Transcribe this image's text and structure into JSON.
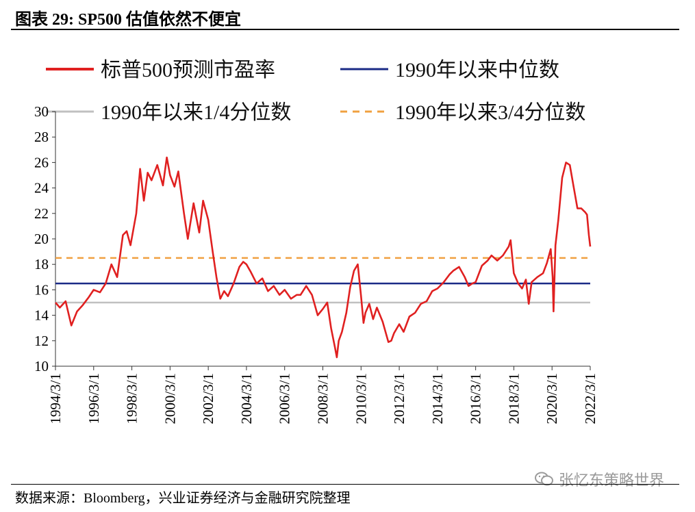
{
  "title": "图表 29:  SP500 估值依然不便宜",
  "source": "数据来源：Bloomberg，兴业证券经济与金融研究院整理",
  "watermark": "张忆东策略世界",
  "chart_data": {
    "type": "line",
    "title": "SP500 估值依然不便宜",
    "xlabel": "",
    "ylabel": "",
    "ylim": [
      10,
      30
    ],
    "yticks": [
      10,
      12,
      14,
      16,
      18,
      20,
      22,
      24,
      26,
      28,
      30
    ],
    "xticks": [
      "1994/3/1",
      "1996/3/1",
      "1998/3/1",
      "2000/3/1",
      "2002/3/1",
      "2004/3/1",
      "2006/3/1",
      "2008/3/1",
      "2010/3/1",
      "2012/3/1",
      "2014/3/1",
      "2016/3/1",
      "2018/3/1",
      "2020/3/1",
      "2022/3/1"
    ],
    "xrange": [
      1994.17,
      2022.17
    ],
    "legend_position": "top",
    "series": [
      {
        "name": "标普500预测市盈率",
        "color": "#e02020",
        "style": "solid",
        "x": [
          1994.17,
          1994.4,
          1994.7,
          1995.0,
          1995.3,
          1995.6,
          1995.9,
          1996.17,
          1996.5,
          1996.8,
          1997.1,
          1997.4,
          1997.7,
          1997.9,
          1998.1,
          1998.4,
          1998.6,
          1998.8,
          1999.0,
          1999.2,
          1999.5,
          1999.8,
          2000.0,
          2000.17,
          2000.4,
          2000.6,
          2000.9,
          2001.1,
          2001.4,
          2001.7,
          2001.9,
          2002.17,
          2002.4,
          2002.6,
          2002.8,
          2003.0,
          2003.2,
          2003.5,
          2003.8,
          2004.0,
          2004.17,
          2004.4,
          2004.7,
          2005.0,
          2005.3,
          2005.6,
          2005.9,
          2006.17,
          2006.5,
          2006.8,
          2007.0,
          2007.3,
          2007.6,
          2007.9,
          2008.17,
          2008.4,
          2008.6,
          2008.8,
          2008.9,
          2009.0,
          2009.17,
          2009.4,
          2009.6,
          2009.8,
          2010.0,
          2010.17,
          2010.3,
          2010.4,
          2010.6,
          2010.8,
          2011.0,
          2011.3,
          2011.6,
          2011.75,
          2011.9,
          2012.17,
          2012.4,
          2012.7,
          2013.0,
          2013.3,
          2013.6,
          2013.9,
          2014.17,
          2014.5,
          2014.8,
          2015.0,
          2015.3,
          2015.6,
          2015.8,
          2016.0,
          2016.17,
          2016.5,
          2016.8,
          2017.0,
          2017.3,
          2017.6,
          2017.9,
          2018.0,
          2018.17,
          2018.4,
          2018.6,
          2018.8,
          2018.95,
          2019.1,
          2019.4,
          2019.7,
          2019.9,
          2020.1,
          2020.2,
          2020.25,
          2020.35,
          2020.5,
          2020.7,
          2020.9,
          2021.1,
          2021.3,
          2021.5,
          2021.7,
          2021.9,
          2022.0,
          2022.1,
          2022.17
        ],
        "y": [
          15.0,
          14.6,
          15.1,
          13.2,
          14.3,
          14.8,
          15.4,
          16.0,
          15.8,
          16.5,
          18.0,
          17.0,
          20.3,
          20.6,
          19.5,
          22.0,
          25.5,
          23.0,
          25.2,
          24.6,
          25.8,
          24.2,
          26.4,
          25.0,
          24.1,
          25.3,
          22.0,
          20.0,
          22.8,
          20.5,
          23.0,
          21.5,
          19.0,
          17.0,
          15.3,
          15.9,
          15.5,
          16.5,
          17.8,
          18.2,
          18.0,
          17.4,
          16.5,
          16.9,
          15.9,
          16.3,
          15.6,
          16.0,
          15.3,
          15.6,
          15.6,
          16.3,
          15.6,
          14.0,
          14.5,
          15.0,
          13.0,
          11.5,
          10.7,
          12.0,
          12.7,
          14.2,
          16.2,
          17.5,
          18.0,
          15.5,
          13.4,
          14.2,
          14.9,
          13.7,
          14.6,
          13.5,
          11.9,
          12.0,
          12.6,
          13.3,
          12.7,
          13.9,
          14.2,
          14.9,
          15.1,
          15.9,
          16.1,
          16.6,
          17.2,
          17.5,
          17.8,
          17.0,
          16.3,
          16.5,
          16.6,
          17.9,
          18.3,
          18.7,
          18.3,
          18.7,
          19.4,
          19.9,
          17.3,
          16.5,
          16.1,
          16.8,
          14.9,
          16.6,
          17.0,
          17.3,
          18.1,
          19.2,
          17.0,
          14.3,
          19.5,
          21.5,
          24.8,
          26.0,
          25.8,
          24.1,
          22.4,
          22.4,
          22.1,
          21.9,
          20.3,
          19.4
        ]
      },
      {
        "name": "1990年以来中位数",
        "color": "#1a2a86",
        "style": "solid",
        "value": 16.5
      },
      {
        "name": "1990年以来1/4分位数",
        "color": "#c0c0c0",
        "style": "solid",
        "value": 15.0
      },
      {
        "name": "1990年以来3/4分位数",
        "color": "#f0a040",
        "style": "dashed",
        "value": 18.5
      }
    ]
  }
}
